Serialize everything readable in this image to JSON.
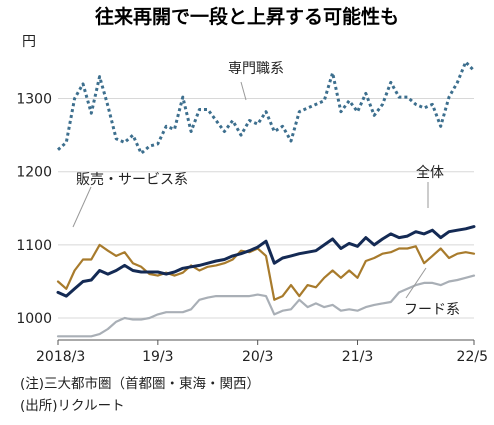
{
  "chart_data": {
    "type": "line",
    "title": "往来再開で一段と上昇する可能性も",
    "ylabel": "円",
    "xlabel": "",
    "ylim": [
      970,
      1380
    ],
    "yticks": [
      1000,
      1100,
      1200,
      1300
    ],
    "xticks": [
      {
        "label": "2018/3",
        "x": 0
      },
      {
        "label": "19/3",
        "x": 12
      },
      {
        "label": "20/3",
        "x": 24
      },
      {
        "label": "21/3",
        "x": 36
      },
      {
        "label": "22/5",
        "x": 50
      }
    ],
    "series": [
      {
        "name": "専門職系",
        "color": "#3d6f8e",
        "style": "dotted",
        "values": [
          1230,
          1240,
          1300,
          1320,
          1280,
          1330,
          1290,
          1245,
          1240,
          1250,
          1225,
          1235,
          1238,
          1262,
          1258,
          1302,
          1255,
          1285,
          1285,
          1270,
          1255,
          1270,
          1250,
          1270,
          1265,
          1282,
          1255,
          1262,
          1242,
          1282,
          1287,
          1292,
          1297,
          1335,
          1282,
          1297,
          1282,
          1307,
          1277,
          1292,
          1322,
          1302,
          1302,
          1292,
          1287,
          1292,
          1262,
          1302,
          1322,
          1350,
          1338
        ]
      },
      {
        "name": "全体",
        "color": "#142a54",
        "style": "solid",
        "values": [
          1035,
          1030,
          1040,
          1050,
          1052,
          1065,
          1060,
          1065,
          1072,
          1065,
          1063,
          1063,
          1063,
          1060,
          1063,
          1068,
          1070,
          1072,
          1075,
          1078,
          1080,
          1085,
          1088,
          1092,
          1097,
          1105,
          1075,
          1082,
          1085,
          1088,
          1090,
          1092,
          1100,
          1108,
          1095,
          1102,
          1098,
          1110,
          1100,
          1108,
          1115,
          1110,
          1112,
          1118,
          1115,
          1120,
          1110,
          1118,
          1120,
          1122,
          1125
        ]
      },
      {
        "name": "販売・サービス系",
        "color": "#a87b2c",
        "style": "solid",
        "values": [
          1050,
          1040,
          1065,
          1080,
          1080,
          1100,
          1092,
          1085,
          1090,
          1075,
          1070,
          1060,
          1058,
          1062,
          1058,
          1062,
          1072,
          1065,
          1070,
          1072,
          1075,
          1080,
          1092,
          1090,
          1095,
          1085,
          1025,
          1030,
          1045,
          1030,
          1045,
          1042,
          1055,
          1065,
          1055,
          1065,
          1055,
          1078,
          1082,
          1088,
          1090,
          1095,
          1095,
          1098,
          1075,
          1085,
          1095,
          1082,
          1088,
          1090,
          1088
        ]
      },
      {
        "name": "フード系",
        "color": "#a9afb6",
        "style": "solid",
        "values": [
          975,
          975,
          975,
          975,
          975,
          978,
          985,
          995,
          1000,
          998,
          998,
          1000,
          1005,
          1008,
          1008,
          1008,
          1012,
          1025,
          1028,
          1030,
          1030,
          1030,
          1030,
          1030,
          1032,
          1030,
          1005,
          1010,
          1012,
          1025,
          1015,
          1020,
          1015,
          1018,
          1010,
          1012,
          1010,
          1015,
          1018,
          1020,
          1022,
          1035,
          1040,
          1045,
          1048,
          1048,
          1045,
          1050,
          1052,
          1055,
          1058
        ]
      }
    ],
    "labels": {
      "senmon": "専門職系",
      "zentai": "全体",
      "hanbai": "販売・サービス系",
      "food": "フード系"
    },
    "notes": [
      "(注)三大都市圏（首都圏・東海・関西）",
      "(出所)リクルート"
    ]
  }
}
